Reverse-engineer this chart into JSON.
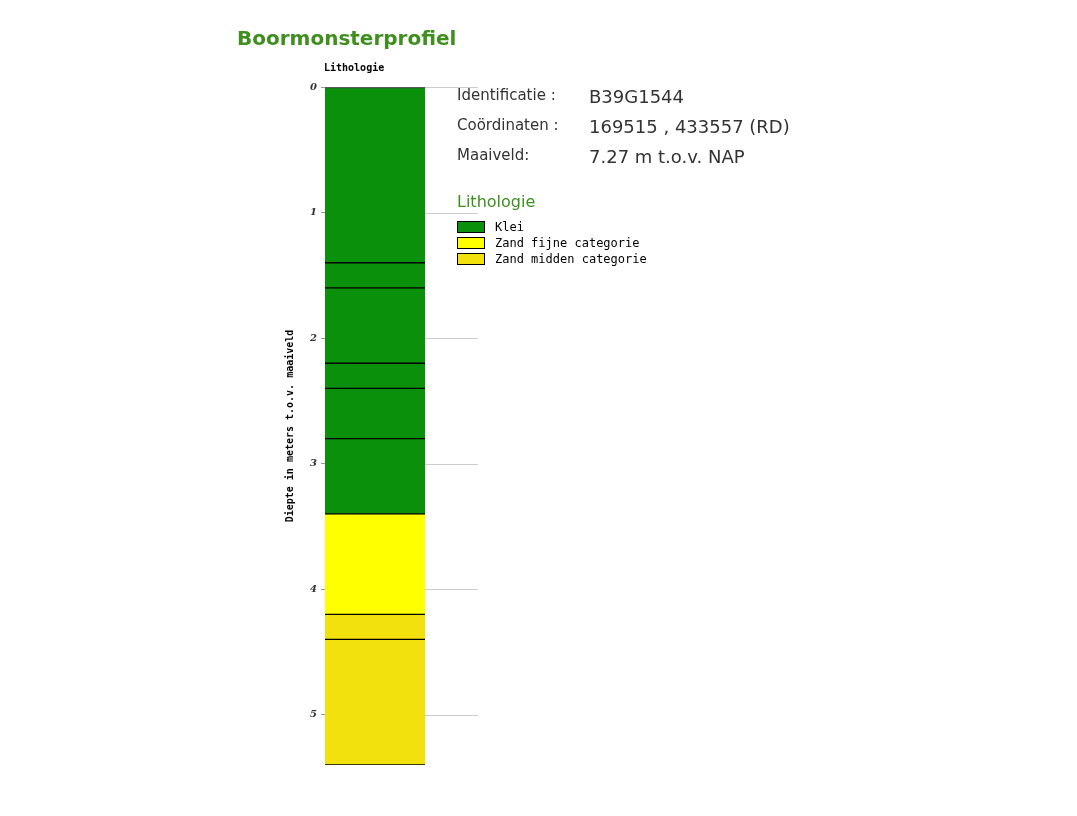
{
  "chart_data": {
    "type": "bar",
    "stacked": true,
    "title": "Boormonsterprofiel",
    "subtitle": "Lithologie",
    "ylabel": "Diepte in meters t.o.v. maaiveld",
    "legend_title": "Lithologie",
    "legend": "right",
    "categories": [
      null
    ],
    "ylim": [
      5.4,
      0
    ],
    "yticks": [
      0,
      1,
      2,
      3,
      4,
      5
    ],
    "grid": "y",
    "series": [
      {
        "name": "Klei",
        "color": "#0b900b",
        "values": [
          1.4
        ]
      },
      {
        "color": "#0b900b",
        "values": [
          0.2
        ]
      },
      {
        "color": "#0b900b",
        "values": [
          0.6
        ]
      },
      {
        "color": "#0b900b",
        "values": [
          0.2
        ]
      },
      {
        "color": "#0b900b",
        "values": [
          0.4
        ]
      },
      {
        "color": "#0b900b",
        "values": [
          0.6
        ]
      },
      {
        "name": "Zand fijne categorie",
        "color": "#ffff00",
        "values": [
          0.8
        ]
      },
      {
        "name": "Zand midden categorie",
        "color": "#f2e10c",
        "values": [
          0.2
        ]
      },
      {
        "color": "#f2e10c",
        "values": [
          1.0
        ]
      }
    ],
    "annotations": [
      "Identificatie :",
      "B39G1544",
      "Coördinaten :",
      "169515 , 433557 (RD)",
      "Maaiveld:",
      "7.27 m t.o.v. NAP"
    ]
  }
}
